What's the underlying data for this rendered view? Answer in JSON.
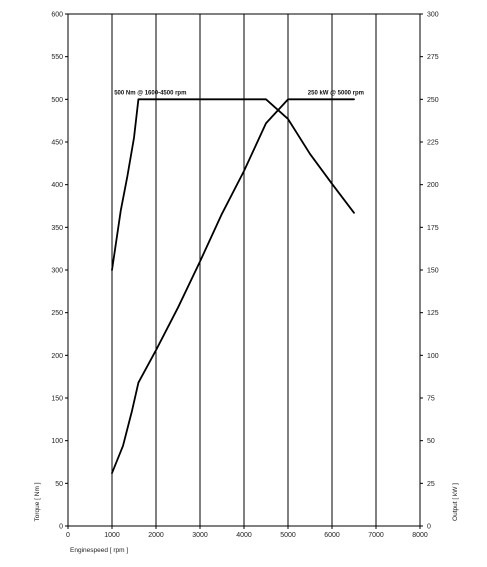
{
  "chart_data": {
    "type": "line",
    "xlabel": "Enginespeed [ rpm ]",
    "ylabel_left": "Torque [ Nm ]",
    "ylabel_right": "Output [ kW ]",
    "xlim": [
      0,
      8000
    ],
    "ylim_left": [
      0,
      600
    ],
    "ylim_right": [
      0,
      300
    ],
    "x_ticks": [
      0,
      1000,
      2000,
      3000,
      4000,
      5000,
      6000,
      7000,
      8000
    ],
    "y_ticks_left": [
      0,
      50,
      100,
      150,
      200,
      250,
      300,
      350,
      400,
      450,
      500,
      550,
      600
    ],
    "y_ticks_right": [
      0,
      25,
      50,
      75,
      100,
      125,
      150,
      175,
      200,
      225,
      250,
      275,
      300
    ],
    "vertical_grid": true,
    "horizontal_grid": false,
    "series": [
      {
        "axis": "left",
        "color": "#000000",
        "points": [
          [
            1000,
            300
          ],
          [
            1200,
            370
          ],
          [
            1350,
            410
          ],
          [
            1500,
            455
          ],
          [
            1600,
            500
          ],
          [
            4500,
            500
          ],
          [
            5000,
            477
          ],
          [
            5500,
            436
          ],
          [
            6000,
            401
          ],
          [
            6500,
            367
          ]
        ]
      },
      {
        "axis": "right",
        "color": "#000000",
        "points": [
          [
            1000,
            31
          ],
          [
            1250,
            47
          ],
          [
            1450,
            67
          ],
          [
            1600,
            84
          ],
          [
            2000,
            103
          ],
          [
            2500,
            128
          ],
          [
            3000,
            155
          ],
          [
            3500,
            183
          ],
          [
            4000,
            208
          ],
          [
            4500,
            236
          ],
          [
            5000,
            250
          ],
          [
            6500,
            250
          ]
        ]
      }
    ],
    "annotations": [
      {
        "text": "500 Nm @ 1600-4500 rpm",
        "x": 1050,
        "y": 500,
        "axis": "left"
      },
      {
        "text": "250 kW @ 5000 rpm",
        "x": 5450,
        "y": 250,
        "axis": "right"
      }
    ]
  }
}
